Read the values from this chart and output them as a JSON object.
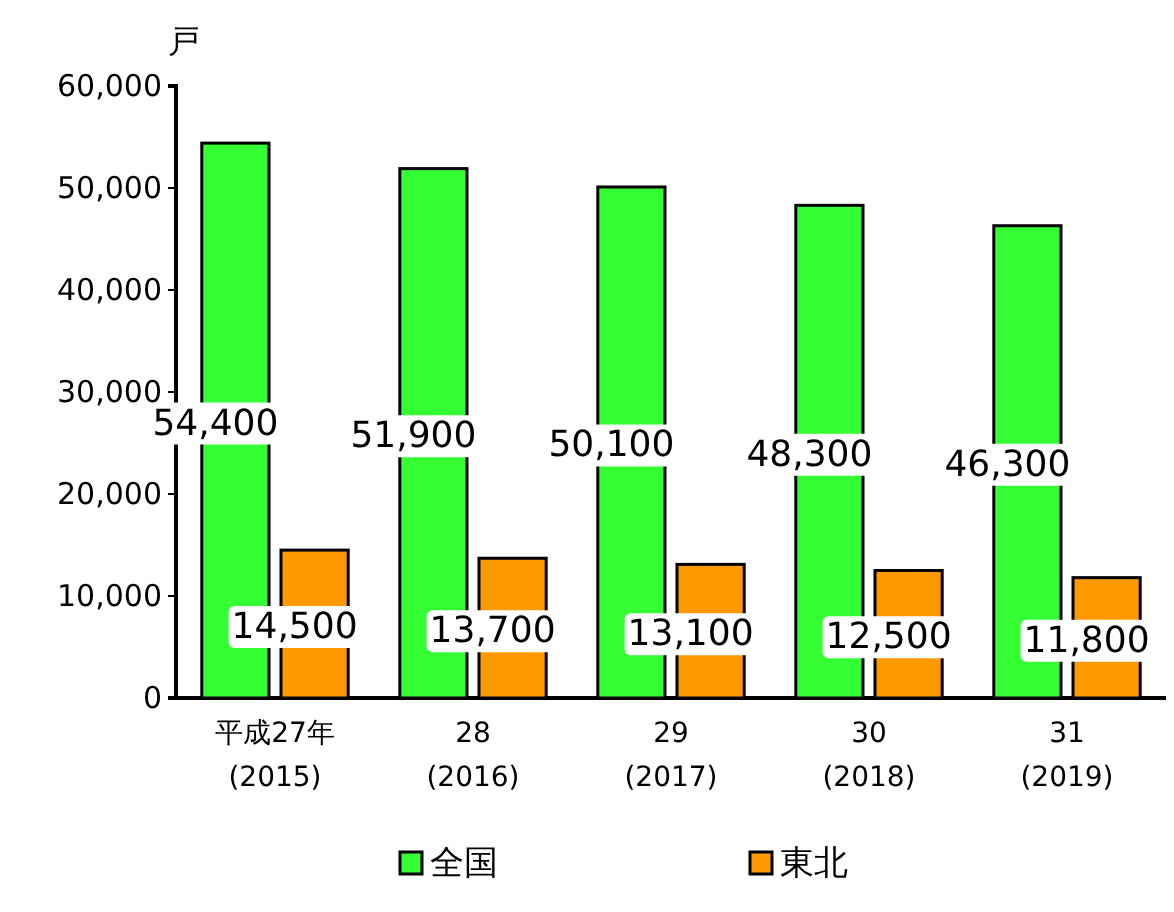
{
  "chart_data": {
    "type": "bar",
    "ylabel": "戸",
    "categories": [
      "平成27年\n(2015)",
      "28\n(2016)",
      "29\n(2017)",
      "30\n(2018)",
      "31\n(2019)"
    ],
    "series": [
      {
        "name": "全国",
        "color": "#33ff33",
        "values": [
          54400,
          51900,
          50100,
          48300,
          46300
        ],
        "value_labels": [
          "54,400",
          "51,900",
          "50,100",
          "48,300",
          "46,300"
        ]
      },
      {
        "name": "東北",
        "color": "#ff9900",
        "values": [
          14500,
          13700,
          13100,
          12500,
          11800
        ],
        "value_labels": [
          "14,500",
          "13,700",
          "13,100",
          "12,500",
          "11,800"
        ]
      }
    ],
    "ylim": [
      0,
      60000
    ],
    "yticks": [
      0,
      {
        "value": 10000,
        "label": "10,000"
      },
      {
        "value": 20000,
        "label": "20,000"
      },
      {
        "value": 30000,
        "label": "30,000"
      },
      {
        "value": 40000,
        "label": "40,000"
      },
      {
        "value": 50000,
        "label": "50,000"
      },
      {
        "value": 60000,
        "label": "60,000"
      }
    ],
    "legend": "bottom",
    "grid": false
  }
}
